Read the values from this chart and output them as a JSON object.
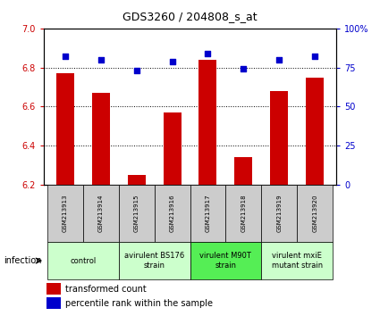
{
  "title": "GDS3260 / 204808_s_at",
  "samples": [
    "GSM213913",
    "GSM213914",
    "GSM213915",
    "GSM213916",
    "GSM213917",
    "GSM213918",
    "GSM213919",
    "GSM213920"
  ],
  "transformed_counts": [
    6.77,
    6.67,
    6.25,
    6.57,
    6.84,
    6.34,
    6.68,
    6.75
  ],
  "percentile_ranks": [
    82,
    80,
    73,
    79,
    84,
    74,
    80,
    82
  ],
  "ylim_left": [
    6.2,
    7.0
  ],
  "ylim_right": [
    0,
    100
  ],
  "yticks_left": [
    6.2,
    6.4,
    6.6,
    6.8,
    7.0
  ],
  "ytick_labels_right": [
    "0",
    "25",
    "50",
    "75",
    "100%"
  ],
  "bar_color": "#cc0000",
  "dot_color": "#0000cc",
  "bar_width": 0.5,
  "group_defs": [
    [
      0,
      1,
      "control",
      "#ccffcc"
    ],
    [
      2,
      3,
      "avirulent BS176\nstrain",
      "#ccffcc"
    ],
    [
      4,
      5,
      "virulent M90T\nstrain",
      "#55ee55"
    ],
    [
      6,
      7,
      "virulent mxiE\nmutant strain",
      "#ccffcc"
    ]
  ],
  "infection_label": "infection",
  "legend_bar_label": "transformed count",
  "legend_dot_label": "percentile rank within the sample",
  "tick_label_color_left": "#cc0000",
  "tick_label_color_right": "#0000cc",
  "sample_box_bg": "#cccccc",
  "title_fontsize": 9,
  "tick_fontsize": 7,
  "sample_fontsize": 5,
  "group_fontsize": 6,
  "legend_fontsize": 7
}
